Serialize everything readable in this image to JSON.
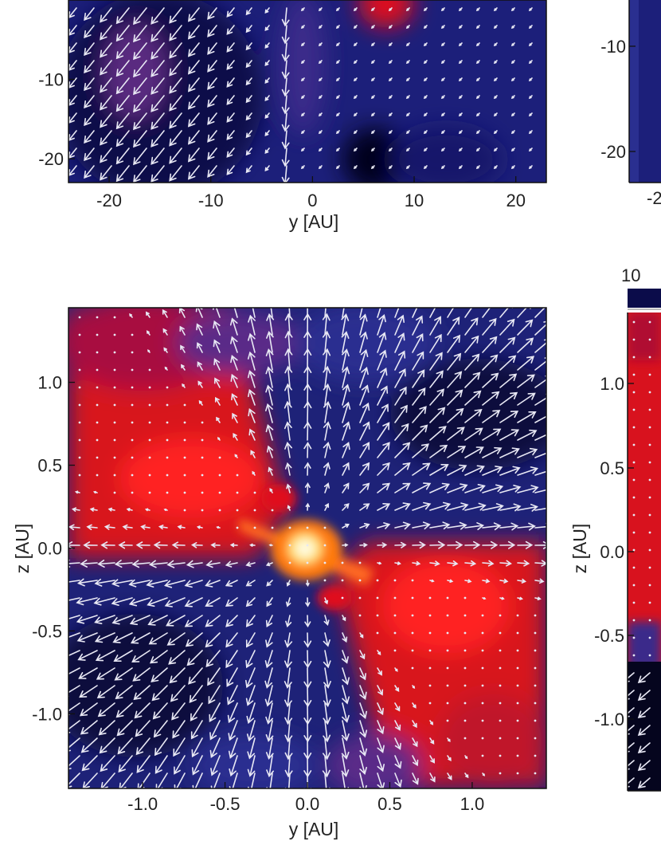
{
  "chart_data": [
    {
      "type": "heatmap",
      "panel": "top-left",
      "xlabel": "y [AU]",
      "ylabel": "",
      "xlim": [
        -24,
        23
      ],
      "ylim": [
        -23,
        0
      ],
      "xticks": [
        -20,
        -10,
        0,
        10,
        20
      ],
      "xtick_labels": [
        "-20",
        "-10",
        "0",
        "10",
        "20"
      ],
      "yticks": [
        -10,
        -20
      ],
      "ytick_labels": [
        "-10",
        "-20"
      ],
      "overlay": "velocity-vector-arrows",
      "colormap": [
        "#05051e",
        "#1c1f7a",
        "#3e2e8a",
        "#7a1a5c",
        "#e0101e",
        "#ffe060"
      ]
    },
    {
      "type": "heatmap",
      "panel": "bottom-left",
      "xlabel": "y [AU]",
      "ylabel": "z [AU]",
      "xlim": [
        -1.45,
        1.45
      ],
      "ylim": [
        -1.45,
        1.45
      ],
      "xticks": [
        -1.0,
        -0.5,
        0.0,
        0.5,
        1.0
      ],
      "xtick_labels": [
        "-1.0",
        "-0.5",
        "0.0",
        "0.5",
        "1.0"
      ],
      "yticks": [
        1.0,
        0.5,
        0.0,
        -0.5,
        -1.0
      ],
      "ytick_labels": [
        "1.0",
        "0.5",
        "0.0",
        "-0.5",
        "-1.0"
      ],
      "overlay": "velocity-vector-arrows",
      "colormap": [
        "#05051e",
        "#1c1f7a",
        "#3e2e8a",
        "#7a1a5c",
        "#e0101e",
        "#ffe060"
      ]
    },
    {
      "type": "heatmap",
      "panel": "top-right-partial",
      "xlabel": "",
      "ylabel": "",
      "yticks": [
        -10,
        -20
      ],
      "ytick_labels": [
        "-10",
        "-20"
      ],
      "xtick_labels_visible": [
        "-2"
      ]
    },
    {
      "type": "heatmap",
      "panel": "bottom-right-partial",
      "xlabel": "",
      "ylabel": "z [AU]",
      "yticks": [
        1.0,
        0.5,
        0.0,
        -0.5,
        -1.0
      ],
      "ytick_labels": [
        "1.0",
        "0.5",
        "0.0",
        "-0.5",
        "-1.0"
      ],
      "colorbar_label": "10"
    }
  ]
}
